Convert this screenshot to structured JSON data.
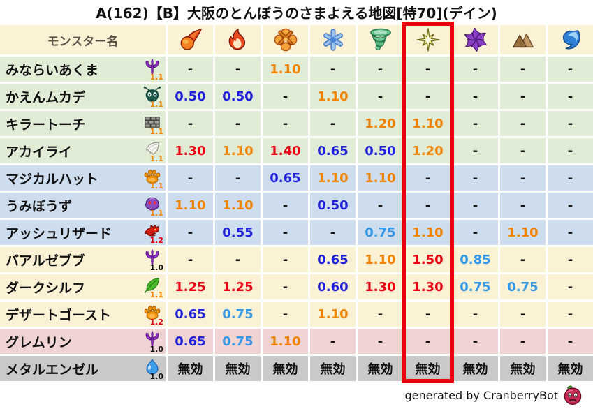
{
  "title": "A(162)【B】大阪のとんぼうのさまよえる地図[特70](デイン)",
  "footer": {
    "text": "generated by CranberryBot",
    "icon": "cranberry-bot-icon"
  },
  "highlight": {
    "element": "starburst-icon",
    "column_index": 5,
    "color": "#e8000d"
  },
  "palette": {
    "value_red": "#e60012",
    "value_orange": "#f08300",
    "value_blue": "#2222dd",
    "value_lightblue": "#3399e8",
    "band_green": "#e1ecd7",
    "band_blue": "#cedded",
    "band_cream": "#fbf1d4",
    "band_pink": "#f0d4d4",
    "band_gray": "#c9c9c9",
    "header_bg": "#fbf1d4",
    "modifier_colors": {
      "1.0": "#111111",
      "1.1": "#f08300",
      "1.2": "#e60012"
    }
  },
  "chart_data": {
    "type": "table",
    "title": "A(162)【B】大阪のとんぼうのさまよえる地図[特70](デイン)",
    "name_header": "モンスター名",
    "columns": [
      "fireball-icon",
      "flame-icon",
      "explosion-icon",
      "snowflake-icon",
      "tornado-icon",
      "starburst-icon",
      "pinwheel-icon",
      "mountain-icon",
      "wave-icon"
    ],
    "highlighted_column": "starburst-icon",
    "rows": [
      {
        "name": "みならいあくま",
        "family_icon": "demon-trident-icon",
        "modifier": "1.1",
        "band": "green",
        "values": [
          "-",
          "-",
          "1.10",
          "-",
          "-",
          "-",
          "-",
          "-",
          "-"
        ]
      },
      {
        "name": "かえんムカデ",
        "family_icon": "bug-icon",
        "modifier": "1.1",
        "band": "green",
        "values": [
          "0.50",
          "0.50",
          "-",
          "1.10",
          "-",
          "-",
          "-",
          "-",
          "-"
        ]
      },
      {
        "name": "キラートーチ",
        "family_icon": "brick-icon",
        "modifier": "1.1",
        "band": "green",
        "values": [
          "-",
          "-",
          "-",
          "-",
          "1.20",
          "1.10",
          "-",
          "-",
          "-"
        ]
      },
      {
        "name": "アカイライ",
        "family_icon": "wing-icon",
        "modifier": "1.1",
        "band": "green",
        "values": [
          "1.30",
          "1.10",
          "1.40",
          "0.65",
          "0.50",
          "1.20",
          "-",
          "-",
          "-"
        ]
      },
      {
        "name": "マジカルハット",
        "family_icon": "paw-icon",
        "modifier": "1.1",
        "band": "blue",
        "values": [
          "-",
          "-",
          "0.65",
          "1.10",
          "1.10",
          "-",
          "-",
          "-",
          "-"
        ]
      },
      {
        "name": "うみぼうず",
        "family_icon": "blob-icon",
        "modifier": "1.1",
        "band": "blue",
        "values": [
          "1.10",
          "1.10",
          "-",
          "0.50",
          "-",
          "-",
          "-",
          "-",
          "-"
        ]
      },
      {
        "name": "アッシュリザード",
        "family_icon": "dragon-icon",
        "modifier": "1.2",
        "band": "blue",
        "values": [
          "-",
          "0.55",
          "-",
          "-",
          "0.75",
          "1.10",
          "-",
          "1.10",
          "-"
        ]
      },
      {
        "name": "バアルゼブブ",
        "family_icon": "demon-trident-icon",
        "modifier": "1.0",
        "band": "cream",
        "values": [
          "-",
          "-",
          "-",
          "0.65",
          "1.10",
          "1.50",
          "0.85",
          "-",
          "-"
        ]
      },
      {
        "name": "ダークシルフ",
        "family_icon": "leaf-icon",
        "modifier": "1.1",
        "band": "cream",
        "values": [
          "1.25",
          "1.25",
          "-",
          "0.60",
          "1.30",
          "1.30",
          "0.75",
          "0.75",
          "-"
        ]
      },
      {
        "name": "デザートゴースト",
        "family_icon": "paw-icon",
        "modifier": "1.2",
        "band": "cream",
        "values": [
          "0.65",
          "0.75",
          "-",
          "1.10",
          "-",
          "-",
          "-",
          "-",
          "-"
        ]
      },
      {
        "name": "グレムリン",
        "family_icon": "demon-trident-icon",
        "modifier": "1.0",
        "band": "pink",
        "values": [
          "0.65",
          "0.75",
          "1.10",
          "-",
          "-",
          "-",
          "-",
          "-",
          "-"
        ]
      },
      {
        "name": "メタルエンゼル",
        "family_icon": "slime-icon",
        "modifier": "1.0",
        "band": "gray",
        "values": [
          "無効",
          "無効",
          "無効",
          "無効",
          "無効",
          "無効",
          "無効",
          "無効",
          "無効"
        ]
      }
    ]
  }
}
